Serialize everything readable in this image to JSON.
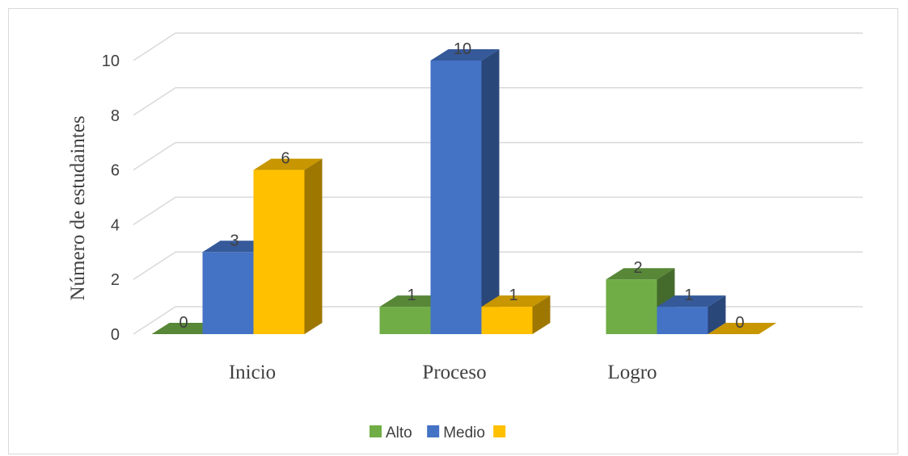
{
  "chart_data": {
    "type": "bar",
    "title": "",
    "xlabel": "",
    "ylabel": "Número de estudaintes",
    "categories": [
      "Inicio",
      "Proceso",
      "Logro"
    ],
    "series": [
      {
        "name": "Alto",
        "values": [
          0,
          1,
          2
        ],
        "color": "#70ad47"
      },
      {
        "name": "Medio",
        "values": [
          3,
          10,
          1
        ],
        "color": "#4472c4"
      },
      {
        "values": [
          6,
          1,
          0
        ],
        "color": "#ffc000"
      }
    ],
    "ylim": [
      0,
      10
    ],
    "yticks": [
      "0",
      "2",
      "4",
      "6",
      "8",
      "10"
    ],
    "grid": true,
    "legend_position": "bottom",
    "data_labels": true,
    "style": "3d-clustered-column"
  }
}
